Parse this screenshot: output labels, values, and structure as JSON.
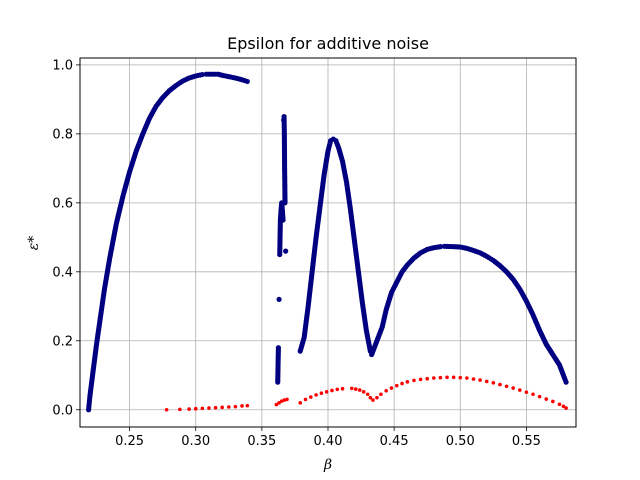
{
  "chart_data": {
    "type": "scatter",
    "title": "Epsilon for additive noise",
    "xlabel": "β",
    "ylabel": "ε*",
    "xlim": [
      0.2125,
      0.5875
    ],
    "ylim": [
      -0.05,
      1.02
    ],
    "xticks": [
      0.25,
      0.3,
      0.35,
      0.4,
      0.45,
      0.5,
      0.55
    ],
    "xtick_labels": [
      "0.25",
      "0.30",
      "0.35",
      "0.40",
      "0.45",
      "0.50",
      "0.55"
    ],
    "yticks": [
      0.0,
      0.2,
      0.4,
      0.6,
      0.8,
      1.0
    ],
    "ytick_labels": [
      "0.0",
      "0.2",
      "0.4",
      "0.6",
      "0.8",
      "1.0"
    ],
    "grid": true,
    "series": [
      {
        "color": "#000080",
        "points": [
          [
            0.219,
            0.0
          ],
          [
            0.22,
            0.04
          ],
          [
            0.222,
            0.1
          ],
          [
            0.225,
            0.19
          ],
          [
            0.228,
            0.27
          ],
          [
            0.231,
            0.35
          ],
          [
            0.235,
            0.44
          ],
          [
            0.24,
            0.54
          ],
          [
            0.245,
            0.62
          ],
          [
            0.25,
            0.69
          ],
          [
            0.255,
            0.75
          ],
          [
            0.26,
            0.8
          ],
          [
            0.265,
            0.845
          ],
          [
            0.27,
            0.88
          ],
          [
            0.275,
            0.905
          ],
          [
            0.28,
            0.925
          ],
          [
            0.285,
            0.94
          ],
          [
            0.29,
            0.953
          ],
          [
            0.295,
            0.962
          ],
          [
            0.3,
            0.968
          ],
          [
            0.305,
            0.972
          ],
          [
            0.308,
            0.973
          ],
          [
            0.317,
            0.973
          ],
          [
            0.32,
            0.97
          ],
          [
            0.325,
            0.966
          ],
          [
            0.33,
            0.962
          ],
          [
            0.335,
            0.957
          ],
          [
            0.339,
            0.952
          ],
          [
            0.362,
            0.08
          ],
          [
            0.3625,
            0.18
          ],
          [
            0.363,
            0.32
          ],
          [
            0.3635,
            0.45
          ],
          [
            0.364,
            0.55
          ],
          [
            0.3645,
            0.58
          ],
          [
            0.365,
            0.6
          ],
          [
            0.3655,
            0.58
          ],
          [
            0.366,
            0.55
          ],
          [
            0.3665,
            0.84
          ],
          [
            0.3668,
            0.85
          ],
          [
            0.367,
            0.8
          ],
          [
            0.3672,
            0.7
          ],
          [
            0.3675,
            0.6
          ],
          [
            0.368,
            0.46
          ],
          [
            0.379,
            0.17
          ],
          [
            0.382,
            0.21
          ],
          [
            0.385,
            0.3
          ],
          [
            0.388,
            0.4
          ],
          [
            0.391,
            0.5
          ],
          [
            0.394,
            0.59
          ],
          [
            0.397,
            0.68
          ],
          [
            0.4,
            0.75
          ],
          [
            0.402,
            0.78
          ],
          [
            0.404,
            0.785
          ],
          [
            0.406,
            0.78
          ],
          [
            0.408,
            0.76
          ],
          [
            0.411,
            0.72
          ],
          [
            0.414,
            0.66
          ],
          [
            0.417,
            0.58
          ],
          [
            0.42,
            0.49
          ],
          [
            0.423,
            0.4
          ],
          [
            0.426,
            0.31
          ],
          [
            0.429,
            0.23
          ],
          [
            0.432,
            0.17
          ],
          [
            0.433,
            0.16
          ],
          [
            0.438,
            0.21
          ],
          [
            0.441,
            0.24
          ],
          [
            0.444,
            0.29
          ],
          [
            0.448,
            0.34
          ],
          [
            0.452,
            0.37
          ],
          [
            0.456,
            0.4
          ],
          [
            0.46,
            0.42
          ],
          [
            0.465,
            0.44
          ],
          [
            0.47,
            0.455
          ],
          [
            0.475,
            0.465
          ],
          [
            0.48,
            0.47
          ],
          [
            0.485,
            0.473
          ],
          [
            0.488,
            0.474
          ],
          [
            0.495,
            0.473
          ],
          [
            0.5,
            0.472
          ],
          [
            0.505,
            0.468
          ],
          [
            0.51,
            0.462
          ],
          [
            0.515,
            0.455
          ],
          [
            0.52,
            0.445
          ],
          [
            0.525,
            0.433
          ],
          [
            0.53,
            0.418
          ],
          [
            0.535,
            0.4
          ],
          [
            0.54,
            0.378
          ],
          [
            0.545,
            0.35
          ],
          [
            0.55,
            0.315
          ],
          [
            0.555,
            0.275
          ],
          [
            0.56,
            0.23
          ],
          [
            0.565,
            0.19
          ],
          [
            0.57,
            0.16
          ],
          [
            0.575,
            0.13
          ],
          [
            0.578,
            0.1
          ],
          [
            0.58,
            0.08
          ]
        ]
      },
      {
        "color": "#ff0000",
        "points": [
          [
            0.278,
            0.0
          ],
          [
            0.288,
            0.001
          ],
          [
            0.295,
            0.002
          ],
          [
            0.3,
            0.003
          ],
          [
            0.305,
            0.004
          ],
          [
            0.31,
            0.005
          ],
          [
            0.315,
            0.006
          ],
          [
            0.32,
            0.007
          ],
          [
            0.325,
            0.008
          ],
          [
            0.33,
            0.009
          ],
          [
            0.335,
            0.011
          ],
          [
            0.339,
            0.012
          ],
          [
            0.361,
            0.015
          ],
          [
            0.363,
            0.02
          ],
          [
            0.365,
            0.025
          ],
          [
            0.367,
            0.028
          ],
          [
            0.369,
            0.03
          ],
          [
            0.379,
            0.02
          ],
          [
            0.383,
            0.03
          ],
          [
            0.387,
            0.037
          ],
          [
            0.391,
            0.043
          ],
          [
            0.395,
            0.048
          ],
          [
            0.399,
            0.052
          ],
          [
            0.403,
            0.056
          ],
          [
            0.407,
            0.059
          ],
          [
            0.411,
            0.061
          ],
          [
            0.418,
            0.062
          ],
          [
            0.421,
            0.06
          ],
          [
            0.424,
            0.057
          ],
          [
            0.427,
            0.052
          ],
          [
            0.43,
            0.045
          ],
          [
            0.432,
            0.035
          ],
          [
            0.434,
            0.028
          ],
          [
            0.437,
            0.035
          ],
          [
            0.44,
            0.045
          ],
          [
            0.444,
            0.055
          ],
          [
            0.448,
            0.063
          ],
          [
            0.452,
            0.07
          ],
          [
            0.456,
            0.076
          ],
          [
            0.46,
            0.081
          ],
          [
            0.465,
            0.085
          ],
          [
            0.47,
            0.088
          ],
          [
            0.475,
            0.09
          ],
          [
            0.48,
            0.092
          ],
          [
            0.485,
            0.093
          ],
          [
            0.49,
            0.094
          ],
          [
            0.495,
            0.094
          ],
          [
            0.5,
            0.093
          ],
          [
            0.505,
            0.092
          ],
          [
            0.51,
            0.089
          ],
          [
            0.515,
            0.086
          ],
          [
            0.52,
            0.082
          ],
          [
            0.525,
            0.078
          ],
          [
            0.53,
            0.073
          ],
          [
            0.535,
            0.068
          ],
          [
            0.54,
            0.063
          ],
          [
            0.545,
            0.057
          ],
          [
            0.55,
            0.051
          ],
          [
            0.555,
            0.045
          ],
          [
            0.56,
            0.038
          ],
          [
            0.565,
            0.031
          ],
          [
            0.57,
            0.024
          ],
          [
            0.575,
            0.016
          ],
          [
            0.578,
            0.01
          ],
          [
            0.58,
            0.005
          ]
        ]
      }
    ]
  }
}
